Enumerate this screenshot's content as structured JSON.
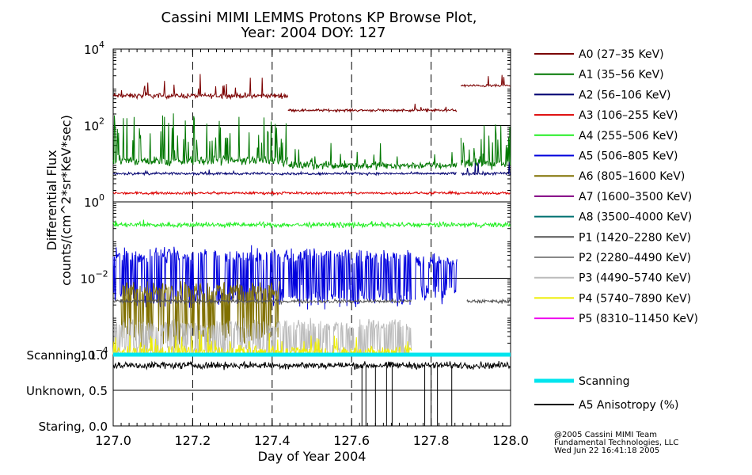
{
  "chart_data": {
    "type": "line",
    "title": "Cassini MIMI LEMMS Protons KP Browse Plot,",
    "subtitle": "Year: 2004 DOY: 127",
    "xlabel": "Day of Year 2004",
    "ylabel": "Differential Flux",
    "ylabel2": "counts/(cm^2*sr*KeV*sec)",
    "x_range": [
      127.0,
      128.0
    ],
    "x_ticks": [
      "127.0",
      "127.2",
      "127.4",
      "127.6",
      "127.8",
      "128.0"
    ],
    "dashed_x": [
      127.2,
      127.4,
      127.6,
      127.8
    ],
    "y_scale": "log",
    "y_range_log10": [
      -4,
      4
    ],
    "y_ticks": [
      {
        "base": "10",
        "exp": "4",
        "v": 4
      },
      {
        "base": "10",
        "exp": "2",
        "v": 2
      },
      {
        "base": "10",
        "exp": "0",
        "v": 0
      },
      {
        "base": "10",
        "exp": "−2",
        "v": -2
      },
      {
        "base": "10",
        "exp": "−4",
        "v": -4
      }
    ],
    "series": [
      {
        "name": "A0 (27–35 KeV)",
        "color": "#7b0000",
        "segments": [
          {
            "x0": 127.0,
            "x1": 127.44,
            "y": 600,
            "noise": 0.08,
            "spike_prob": 0.08,
            "spike_amp": 0.5
          },
          {
            "x0": 127.44,
            "x1": 127.865,
            "y": 250,
            "noise": 0.04,
            "spike_prob": 0.03,
            "spike_amp": 0.15
          },
          {
            "x0": 127.875,
            "x1": 128.0,
            "y": 1100,
            "noise": 0.04,
            "spike_prob": 0.05,
            "spike_amp": 0.3
          }
        ]
      },
      {
        "name": "A1 (35–56 KeV)",
        "color": "#007700",
        "segments": [
          {
            "x0": 127.0,
            "x1": 127.44,
            "y": 12,
            "noise": 0.15,
            "spike_prob": 0.2,
            "spike_amp": 1.2
          },
          {
            "x0": 127.44,
            "x1": 127.865,
            "y": 9,
            "noise": 0.12,
            "spike_prob": 0.08,
            "spike_amp": 0.6
          },
          {
            "x0": 127.875,
            "x1": 128.0,
            "y": 10,
            "noise": 0.15,
            "spike_prob": 0.25,
            "spike_amp": 1.1
          }
        ]
      },
      {
        "name": "A2 (56–106 KeV)",
        "color": "#000070",
        "segments": [
          {
            "x0": 127.0,
            "x1": 127.865,
            "y": 5.5,
            "noise": 0.04,
            "spike_prob": 0.02,
            "spike_amp": 0.1
          },
          {
            "x0": 127.875,
            "x1": 128.0,
            "y": 5.5,
            "noise": 0.05,
            "spike_prob": 0.08,
            "spike_amp": 0.4
          }
        ]
      },
      {
        "name": "A3 (106–255 KeV)",
        "color": "#dd0000",
        "segments": [
          {
            "x0": 127.0,
            "x1": 128.0,
            "y": 1.7,
            "noise": 0.04,
            "spike_prob": 0.01,
            "spike_amp": 0.05
          }
        ]
      },
      {
        "name": "A4 (255–506 KeV)",
        "color": "#22ee22",
        "segments": [
          {
            "x0": 127.0,
            "x1": 128.0,
            "y": 0.25,
            "noise": 0.08,
            "spike_prob": 0.02,
            "spike_amp": 0.1
          }
        ]
      },
      {
        "name": "A5 (506–805 KeV)",
        "color": "#0000dd",
        "segments": [
          {
            "x0": 127.0,
            "x1": 127.75,
            "y": 0.04,
            "noise": 0.25,
            "spike_prob": 0.0,
            "spike_amp": 0.0,
            "drop_prob": 0.45,
            "drop_to": 0.003
          },
          {
            "x0": 127.76,
            "x1": 127.865,
            "y": 0.03,
            "noise": 0.25,
            "spike_prob": 0.0,
            "spike_amp": 0.0,
            "drop_prob": 0.4,
            "drop_to": 0.004
          }
        ]
      },
      {
        "name": "A6 (805–1600 KeV)",
        "color": "#807000",
        "segments": [
          {
            "x0": 127.02,
            "x1": 127.42,
            "y": 0.005,
            "noise": 0.3,
            "spike_prob": 0.0,
            "spike_amp": 0.0,
            "drop_prob": 0.35,
            "drop_to": 0.0003
          }
        ]
      },
      {
        "name": "A7 (1600–3500 KeV)",
        "color": "#800080",
        "segments": []
      },
      {
        "name": "A8 (3500–4000 KeV)",
        "color": "#007070",
        "segments": []
      },
      {
        "name": "P1 (1420–2280 KeV)",
        "color": "#555555",
        "segments": [
          {
            "x0": 127.0,
            "x1": 127.75,
            "y": 0.0025,
            "noise": 0.06,
            "spike_prob": 0.0,
            "spike_amp": 0.0
          },
          {
            "x0": 127.89,
            "x1": 128.0,
            "y": 0.0025,
            "noise": 0.06,
            "spike_prob": 0.0,
            "spike_amp": 0.0
          }
        ]
      },
      {
        "name": "P2 (2280–4490 KeV)",
        "color": "#888888",
        "segments": []
      },
      {
        "name": "P3 (4490–5740 KeV)",
        "color": "#bbbbbb",
        "segments": [
          {
            "x0": 127.0,
            "x1": 127.75,
            "y": 0.0006,
            "noise": 0.2,
            "spike_prob": 0.0,
            "spike_amp": 0.0,
            "drop_prob": 0.5,
            "drop_to": 0.00012
          }
        ]
      },
      {
        "name": "P4 (5740–7890 KeV)",
        "color": "#eeee00",
        "segments": [
          {
            "x0": 127.0,
            "x1": 127.75,
            "y": 0.00012,
            "noise": 0.2,
            "spike_prob": 0.12,
            "spike_amp": 0.5,
            "drop_prob": 0.5,
            "drop_to": 0.0001
          }
        ]
      },
      {
        "name": "P5 (8310–11450 KeV)",
        "color": "#ee00ee",
        "segments": []
      }
    ],
    "lower_panel": {
      "tick_labels": [
        {
          "label": "Scanning, 1.0",
          "v": 1.0
        },
        {
          "label": "Unknown, 0.5",
          "v": 0.5
        },
        {
          "label": "Staring, 0.0",
          "v": 0.0
        }
      ],
      "scanning": {
        "name": "Scanning",
        "color": "#00e5ee",
        "value": 1.0
      },
      "anisotropy": {
        "name": "A5 Anisotropy (%)",
        "color": "#000000",
        "mean": 0.85,
        "noise": 0.06,
        "drops_x": [
          127.626,
          127.636,
          127.66,
          127.688,
          127.702,
          127.784,
          127.8,
          127.816,
          127.852
        ]
      }
    }
  },
  "credits": {
    "line1": "@2005 Cassini MIMI Team",
    "line2": "Fundamental Technologies, LLC",
    "line3": "Wed Jun 22 16:41:18 2005"
  }
}
